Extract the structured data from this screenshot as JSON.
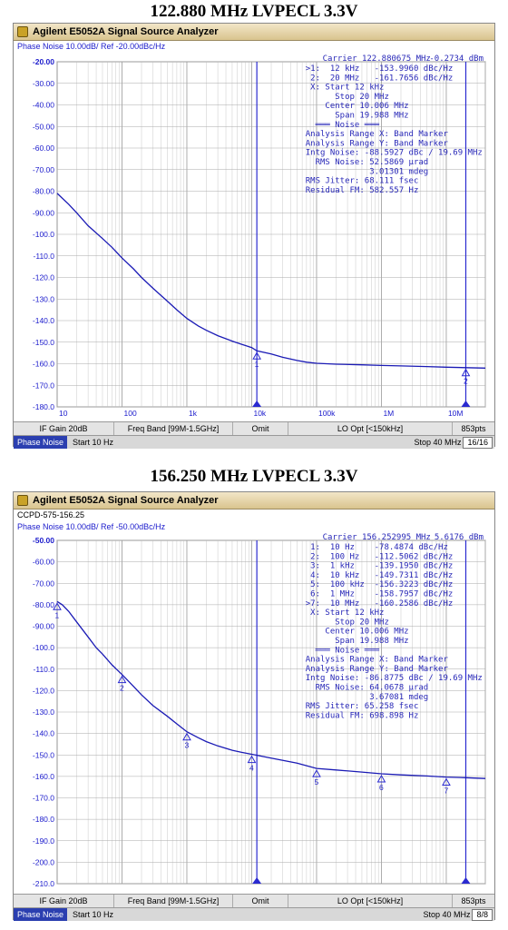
{
  "headings": [
    "122.880 MHz LVPECL 3.3V",
    "156.250 MHz LVPECL 3.3V"
  ],
  "panels": [
    {
      "window_title": "Agilent E5052A Signal Source Analyzer",
      "device_label": "",
      "subtitle": "Phase Noise 10.00dB/ Ref -20.00dBc/Hz",
      "carrier": "Carrier 122.880675 MHz",
      "carrier_level": "-0.2734 dBm",
      "annotations": [
        ">1:  12 kHz   -153.9960 dBc/Hz",
        " 2:  20 MHz   -161.7656 dBc/Hz",
        " X: Start 12 kHz",
        "      Stop 20 MHz",
        "    Center 10.006 MHz",
        "      Span 19.988 MHz",
        "  ═══ Noise ═══",
        "Analysis Range X: Band Marker",
        "Analysis Range Y: Band Marker",
        "Intg Noise: -88.5927 dBc / 19.69 MHz",
        "  RMS Noise: 52.5869 µrad",
        "             3.01301 mdeg",
        "RMS Jitter: 68.111 fsec",
        "Residual FM: 582.557 Hz"
      ],
      "softkeys": [
        "IF Gain 20dB",
        "Freq Band [99M-1.5GHz]",
        "Omit",
        "LO Opt [<150kHz]",
        "853pts"
      ],
      "status": {
        "mode": "Phase Noise",
        "start": "Start 10 Hz",
        "stop": "Stop 40 MHz",
        "page": "16/16"
      }
    },
    {
      "window_title": "Agilent E5052A Signal Source Analyzer",
      "device_label": "CCPD-575-156.25",
      "subtitle": "Phase Noise 10.00dB/ Ref -50.00dBc/Hz",
      "carrier": "Carrier 156.252995 MHz",
      "carrier_level": "5.6176 dBm",
      "annotations": [
        " 1:  10 Hz    -78.4874 dBc/Hz",
        " 2:  100 Hz   -112.5062 dBc/Hz",
        " 3:  1 kHz    -139.1950 dBc/Hz",
        " 4:  10 kHz   -149.7311 dBc/Hz",
        " 5:  100 kHz  -156.3223 dBc/Hz",
        " 6:  1 MHz    -158.7957 dBc/Hz",
        ">7:  10 MHz   -160.2586 dBc/Hz",
        " X: Start 12 kHz",
        "      Stop 20 MHz",
        "    Center 10.006 MHz",
        "      Span 19.988 MHz",
        "  ═══ Noise ═══",
        "Analysis Range X: Band Marker",
        "Analysis Range Y: Band Marker",
        "Intg Noise: -86.8775 dBc / 19.69 MHz",
        "  RMS Noise: 64.0678 µrad",
        "             3.67081 mdeg",
        "RMS Jitter: 65.258 fsec",
        "Residual FM: 698.898 Hz"
      ],
      "softkeys": [
        "IF Gain 20dB",
        "Freq Band [99M-1.5GHz]",
        "Omit",
        "LO Opt [<150kHz]",
        "853pts"
      ],
      "status": {
        "mode": "Phase Noise",
        "start": "Start 10 Hz",
        "stop": "Stop 40 MHz",
        "page": "8/8"
      }
    }
  ],
  "colors": {
    "trace": "#1a1ab5",
    "grid": "#c8c8c8",
    "marker": "#2a2ad0",
    "text": "#1b1bcc"
  },
  "chart_data": [
    {
      "type": "line",
      "title": "",
      "xscale": "log",
      "xlim": [
        10,
        40000000
      ],
      "ylim": [
        -180,
        -20
      ],
      "x_ticks": [
        10,
        100,
        1000,
        10000,
        100000,
        1000000,
        10000000
      ],
      "x_tick_labels": [
        "10",
        "100",
        "1k",
        "10k",
        "100k",
        "1M",
        "10M"
      ],
      "y_ticks": [
        -20,
        -30,
        -40,
        -50,
        -60,
        -70,
        -80,
        -90,
        -100,
        -110,
        -120,
        -130,
        -140,
        -150,
        -160,
        -170,
        -180
      ],
      "y_tick_labels": [
        "-20.00",
        "-30.00",
        "-40.00",
        "-50.00",
        "-60.00",
        "-70.00",
        "-80.00",
        "-90.00",
        "-100.0",
        "-110.0",
        "-120.0",
        "-130.0",
        "-140.0",
        "-150.0",
        "-160.0",
        "-170.0",
        "-180.0"
      ],
      "series": [
        {
          "x": [
            10,
            15,
            20,
            30,
            50,
            70,
            100,
            150,
            200,
            300,
            500,
            700,
            1000,
            1500,
            2000,
            3000,
            5000,
            7000,
            10000,
            12000,
            20000,
            30000,
            50000,
            70000,
            100000,
            200000,
            500000,
            1000000,
            2000000,
            5000000,
            10000000,
            20000000,
            40000000
          ],
          "y": [
            -81,
            -86,
            -90,
            -96,
            -102,
            -106,
            -111,
            -116,
            -120,
            -125,
            -131,
            -135,
            -139,
            -142.5,
            -144.5,
            -147,
            -149.5,
            -151,
            -152.5,
            -154,
            -155.5,
            -157,
            -158.5,
            -159.3,
            -159.8,
            -160.2,
            -160.5,
            -160.8,
            -161,
            -161.3,
            -161.6,
            -161.8,
            -162
          ]
        }
      ],
      "markers": [
        {
          "label": "1",
          "x": 12000,
          "y": -153.996
        },
        {
          "label": "2",
          "x": 20000000,
          "y": -161.7656
        }
      ],
      "band": [
        12000,
        20000000
      ]
    },
    {
      "type": "line",
      "title": "",
      "xscale": "log",
      "xlim": [
        10,
        40000000
      ],
      "ylim": [
        -210,
        -50
      ],
      "x_ticks": [
        10,
        100,
        1000,
        10000,
        100000,
        1000000,
        10000000
      ],
      "x_tick_labels": [],
      "y_ticks": [
        -50,
        -60,
        -70,
        -80,
        -90,
        -100,
        -110,
        -120,
        -130,
        -140,
        -150,
        -160,
        -170,
        -180,
        -190,
        -200,
        -210
      ],
      "y_tick_labels": [
        "-50.00",
        "-60.00",
        "-70.00",
        "-80.00",
        "-90.00",
        "-100.0",
        "-110.0",
        "-120.0",
        "-130.0",
        "-140.0",
        "-150.0",
        "-160.0",
        "-170.0",
        "-180.0",
        "-190.0",
        "-200.0",
        "-210.0"
      ],
      "series": [
        {
          "x": [
            10,
            12,
            15,
            20,
            30,
            40,
            50,
            70,
            100,
            150,
            200,
            300,
            500,
            700,
            1000,
            1500,
            2000,
            3000,
            5000,
            7000,
            10000,
            20000,
            50000,
            100000,
            200000,
            500000,
            1000000,
            2000000,
            5000000,
            10000000,
            20000000,
            40000000
          ],
          "y": [
            -78.5,
            -80,
            -83,
            -88,
            -95,
            -100,
            -103,
            -108,
            -112.5,
            -118,
            -122,
            -127,
            -132,
            -135.5,
            -139.2,
            -142,
            -143.8,
            -145.8,
            -147.8,
            -148.8,
            -149.7,
            -151.5,
            -153.8,
            -156.3,
            -157,
            -158,
            -158.8,
            -159.3,
            -159.8,
            -160.3,
            -160.6,
            -161
          ]
        }
      ],
      "markers": [
        {
          "label": "1",
          "x": 10,
          "y": -78.4874
        },
        {
          "label": "2",
          "x": 100,
          "y": -112.5062
        },
        {
          "label": "3",
          "x": 1000,
          "y": -139.195
        },
        {
          "label": "4",
          "x": 10000,
          "y": -149.7311
        },
        {
          "label": "5",
          "x": 100000,
          "y": -156.3223
        },
        {
          "label": "6",
          "x": 1000000,
          "y": -158.7957
        },
        {
          "label": "7",
          "x": 10000000,
          "y": -160.2586
        }
      ],
      "band": [
        12000,
        20000000
      ]
    }
  ]
}
